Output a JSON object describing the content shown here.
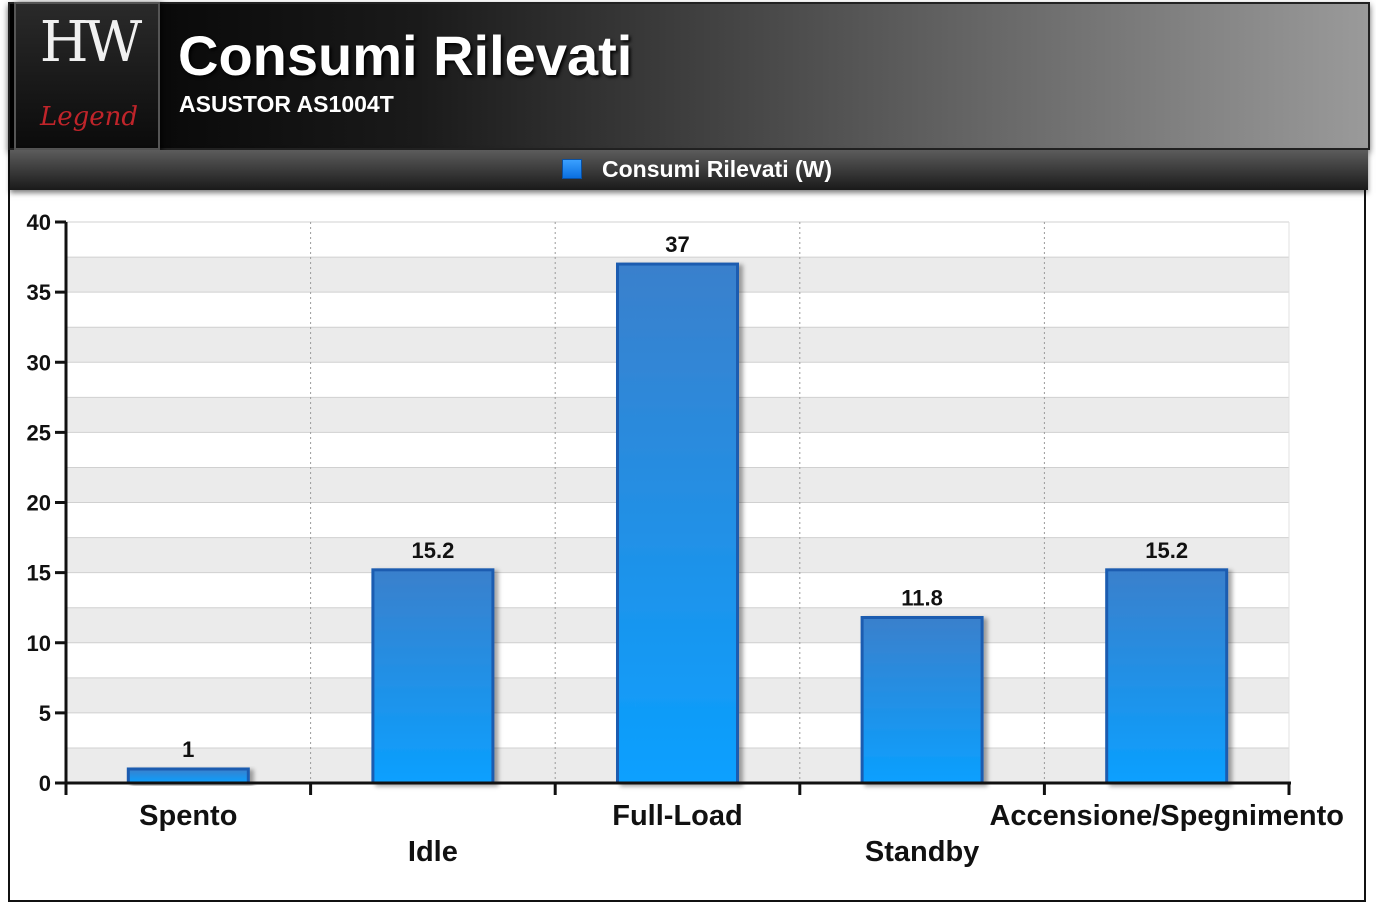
{
  "header": {
    "logo_text_top": "HW",
    "logo_text_bottom": "Legend",
    "title": "Consumi Rilevati",
    "subtitle": "ASUSTOR AS1004T"
  },
  "colors": {
    "bar_top": "#3a80cc",
    "bar_bottom": "#0aa0ff",
    "bar_border": "#1a5cb0",
    "band": "#ebebeb",
    "grid": "#d0d0d0"
  },
  "chart_data": {
    "type": "bar",
    "categories": [
      "Spento",
      "Idle",
      "Full-Load",
      "Standby",
      "Accensione/Spegnimento"
    ],
    "series": [
      {
        "name": "Consumi Rilevati (W)",
        "values": [
          1,
          15.2,
          37,
          11.8,
          15.2
        ]
      }
    ],
    "data_labels": [
      "1",
      "15.2",
      "37",
      "11.8",
      "15.2"
    ],
    "y_ticks": [
      0,
      5,
      10,
      15,
      20,
      25,
      30,
      35,
      40
    ],
    "ylim": [
      0,
      40
    ],
    "xlabel": "",
    "ylabel": "",
    "legend": "top-center",
    "grid": true
  }
}
